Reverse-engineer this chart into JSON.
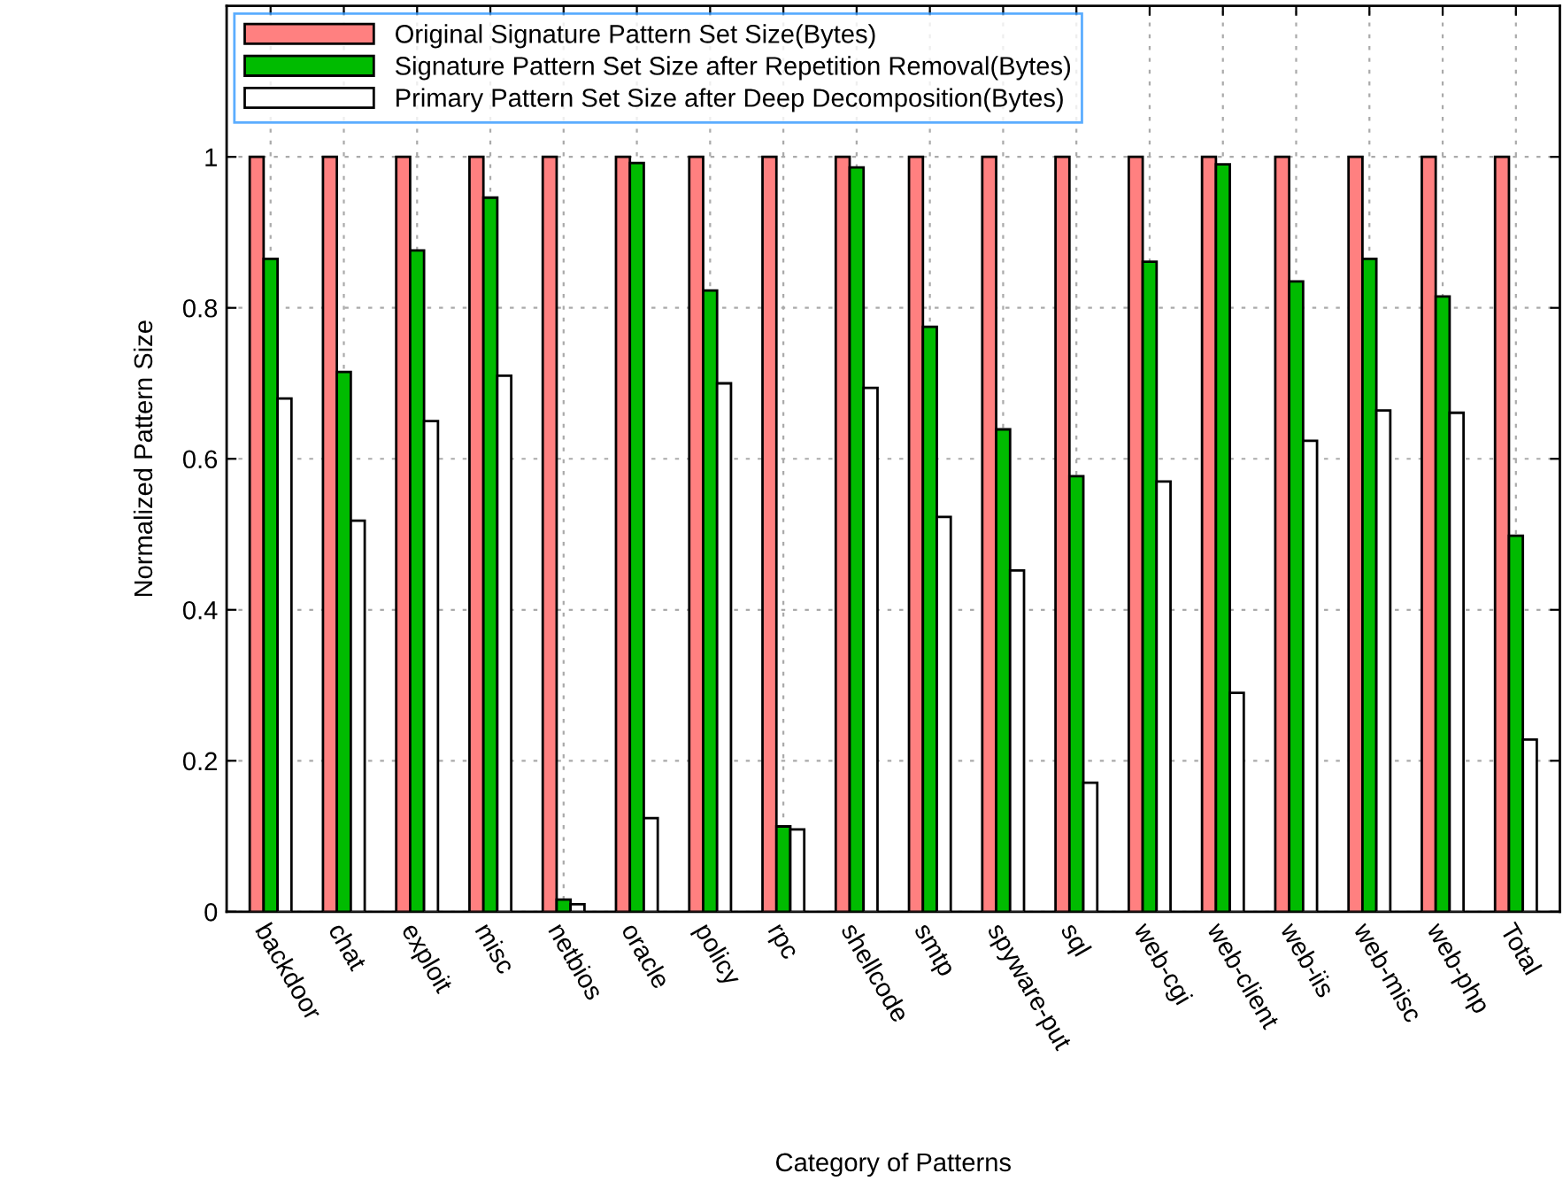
{
  "chart_data": {
    "type": "bar",
    "xlabel": "Category of Patterns",
    "ylabel": "Normalized Pattern Size",
    "categories": [
      "backdoor",
      "chat",
      "exploit",
      "misc",
      "netbios",
      "oracle",
      "policy",
      "rpc",
      "shellcode",
      "smtp",
      "spyware-put",
      "sql",
      "web-cgi",
      "web-client",
      "web-iis",
      "web-misc",
      "web-php",
      "Total"
    ],
    "series": [
      {
        "name": "Original Signature Pattern Set Size(Bytes)",
        "color": "#ff8080",
        "values": [
          1,
          1,
          1,
          1,
          1,
          1,
          1,
          1,
          1,
          1,
          1,
          1,
          1,
          1,
          1,
          1,
          1,
          1
        ]
      },
      {
        "name": "Signature Pattern Set Size after Repetition Removal(Bytes)",
        "color": "#00bb00",
        "values": [
          0.865,
          0.715,
          0.876,
          0.946,
          0.016,
          0.992,
          0.823,
          0.113,
          0.986,
          0.775,
          0.639,
          0.577,
          0.861,
          0.99,
          0.835,
          0.865,
          0.815,
          0.498
        ]
      },
      {
        "name": "Primary Pattern Set Size after Deep Decomposition(Bytes)",
        "color": "#ffffff",
        "values": [
          0.68,
          0.518,
          0.65,
          0.71,
          0.01,
          0.124,
          0.7,
          0.109,
          0.694,
          0.523,
          0.452,
          0.171,
          0.57,
          0.29,
          0.624,
          0.664,
          0.661,
          0.228
        ]
      }
    ],
    "ylim": [
      0,
      1.2
    ],
    "yticks": [
      0,
      0.2,
      0.4,
      0.6,
      0.8,
      1
    ],
    "grid": true,
    "legend": "top left"
  }
}
